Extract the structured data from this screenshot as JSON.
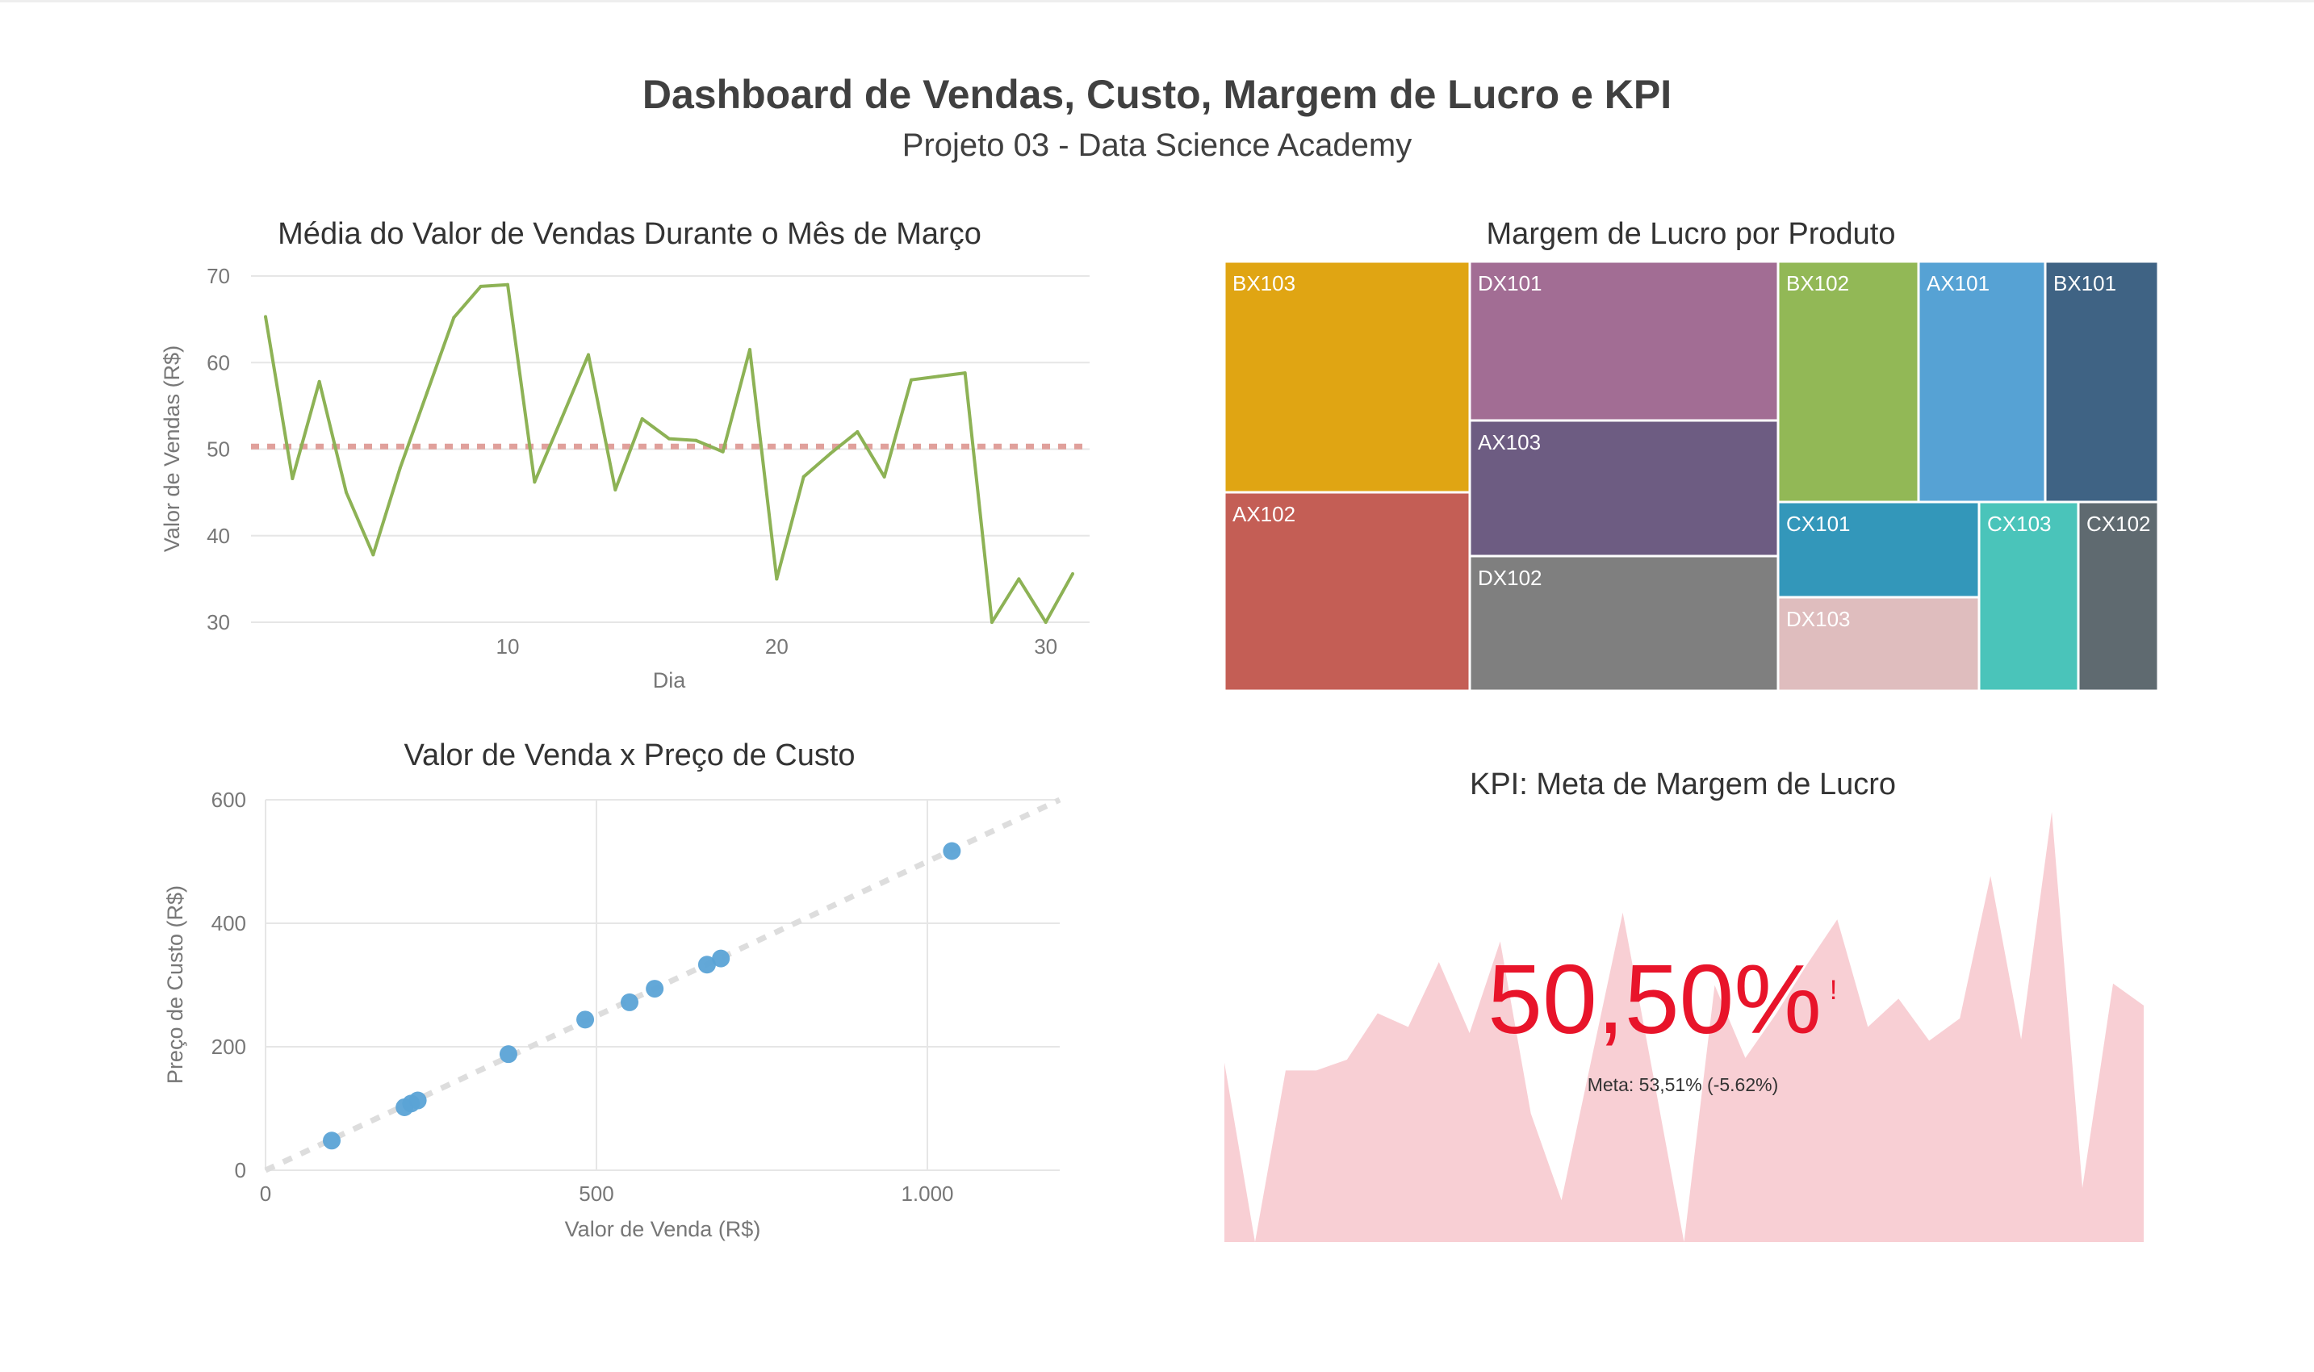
{
  "header": {
    "title": "Dashboard de Vendas, Custo, Margem de Lucro e KPI",
    "subtitle": "Projeto 03 - Data Science Academy"
  },
  "chart_data": [
    {
      "type": "line",
      "title": "Média do Valor de Vendas Durante o Mês de Março",
      "xlabel": "Dia",
      "ylabel": "Valor de Vendas (R$)",
      "xlim": [
        1,
        31
      ],
      "ylim": [
        30,
        70
      ],
      "xticks": [
        10,
        20,
        30
      ],
      "yticks": [
        30,
        40,
        50,
        60,
        70
      ],
      "grid": "horizontal",
      "color": "#8DB255",
      "x": [
        1,
        2,
        3,
        4,
        5,
        6,
        7,
        8,
        9,
        10,
        11,
        12,
        13,
        14,
        15,
        16,
        17,
        18,
        19,
        20,
        21,
        22,
        23,
        24,
        25,
        26,
        27,
        28,
        29,
        30,
        31
      ],
      "values": [
        65.3,
        46.6,
        57.8,
        45.0,
        37.8,
        47.8,
        56.5,
        65.2,
        68.8,
        69.0,
        46.2,
        53.5,
        60.9,
        45.3,
        53.5,
        51.2,
        51.0,
        49.7,
        61.5,
        35.0,
        46.8,
        49.5,
        52.0,
        46.8,
        58.0,
        58.4,
        58.8,
        30.0,
        35.0,
        30.0,
        35.6
      ],
      "reference_line": {
        "value": 50.3,
        "color": "#E0A09B",
        "style": "dashed"
      }
    },
    {
      "type": "scatter",
      "title": "Valor de Venda x Preço de Custo",
      "xlabel": "Valor de Venda (R$)",
      "ylabel": "Preço de Custo (R$)",
      "xlim": [
        0,
        1200
      ],
      "ylim": [
        0,
        600
      ],
      "xticks": [
        0,
        500,
        1000
      ],
      "xtick_labels": [
        "0",
        "500",
        "1.000"
      ],
      "yticks": [
        0,
        200,
        400,
        600
      ],
      "grid": "both",
      "color": "#5BA3D6",
      "points": [
        [
          100,
          48
        ],
        [
          210,
          102
        ],
        [
          220,
          108
        ],
        [
          230,
          113
        ],
        [
          367,
          188
        ],
        [
          483,
          244
        ],
        [
          550,
          272
        ],
        [
          588,
          294
        ],
        [
          667,
          333
        ],
        [
          688,
          343
        ],
        [
          1037,
          517
        ]
      ],
      "trend_line": {
        "from": [
          0,
          0
        ],
        "to": [
          1200,
          600
        ],
        "color": "#DDDDDD",
        "style": "dashed"
      }
    },
    {
      "type": "treemap",
      "title": "Margem de Lucro por Produto",
      "items": [
        {
          "label": "BX103",
          "value": 25.9,
          "color": "#E0A513"
        },
        {
          "label": "AX102",
          "value": 22.4,
          "color": "#C45E55"
        },
        {
          "label": "DX101",
          "value": 22.6,
          "color": "#A26D94"
        },
        {
          "label": "AX103",
          "value": 19.3,
          "color": "#6D5C82"
        },
        {
          "label": "DX102",
          "value": 19.0,
          "color": "#7F7F7F"
        },
        {
          "label": "BX102",
          "value": 15.5,
          "color": "#92B856"
        },
        {
          "label": "AX101",
          "value": 14.0,
          "color": "#56A2D4"
        },
        {
          "label": "BX101",
          "value": 12.5,
          "color": "#3F6384"
        },
        {
          "label": "CX101",
          "value": 8.8,
          "color": "#3397BA"
        },
        {
          "label": "DX103",
          "value": 8.6,
          "color": "#DFBDBE"
        },
        {
          "label": "CX103",
          "value": 8.6,
          "color": "#4AC4BA"
        },
        {
          "label": "CX102",
          "value": 7.0,
          "color": "#5F6A70"
        }
      ]
    },
    {
      "type": "area",
      "title": "KPI: Meta de Margem de Lucro",
      "color": "#F8CFD4",
      "values": [
        41.7,
        0,
        39.9,
        39.9,
        42.4,
        53.2,
        50,
        65.1,
        48.6,
        69.9,
        29.9,
        9.7,
        43.2,
        76.6,
        38.5,
        0,
        59.7,
        42.8,
        53,
        64.4,
        75,
        50,
        56.6,
        46.8,
        52,
        85.1,
        47.1,
        100,
        12.6,
        60.1,
        55
      ],
      "kpi": {
        "value": "50,50%",
        "indicator": "!",
        "goal_text": "Meta: 53,51% (-5.62%)",
        "value_color": "#E8142A",
        "status": "below goal"
      }
    }
  ]
}
